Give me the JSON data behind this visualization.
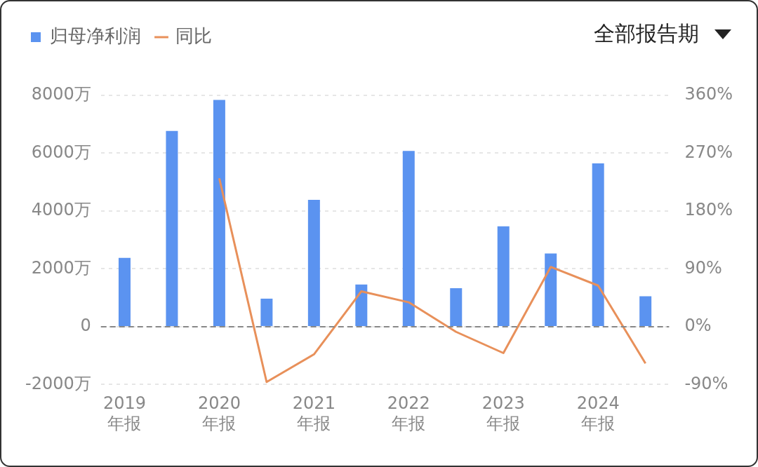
{
  "chart_data": {
    "type": "bar",
    "categories": [
      "2019 年报",
      null,
      "2020 年报",
      null,
      "2021 年报",
      null,
      "2022 年报",
      null,
      "2023 年报",
      null,
      "2024 年报",
      null
    ],
    "series": [
      {
        "name": "归母净利润",
        "color": "#5b93f0",
        "values": [
          2380,
          6770,
          7840,
          970,
          4390,
          1460,
          6080,
          1330,
          3470,
          2530,
          5650,
          1050
        ]
      },
      {
        "name": "同比",
        "type": "line",
        "axis": "y2",
        "color": "#e8905a",
        "values": [
          null,
          null,
          231,
          -86,
          -43,
          55,
          38,
          -8,
          -41,
          93,
          64,
          -57
        ]
      }
    ],
    "ylim": [
      -2000,
      8000
    ],
    "yticks": [
      {
        "value": -2000,
        "label": "-2000万"
      },
      0,
      {
        "value": 2000,
        "label": "2000万"
      },
      {
        "value": 4000,
        "label": "4000万"
      },
      {
        "value": 6000,
        "label": "6000万"
      },
      {
        "value": 8000,
        "label": "8000万"
      }
    ],
    "y2lim": [
      -90,
      360
    ],
    "y2ticks": [
      {
        "value": -90,
        "label": "-90%"
      },
      {
        "value": 0,
        "label": "0%"
      },
      {
        "value": 90,
        "label": "90%"
      },
      {
        "value": 180,
        "label": "180%"
      },
      {
        "value": 270,
        "label": "270%"
      },
      {
        "value": 360,
        "label": "360%"
      }
    ],
    "grid": "y",
    "ref_lines": [
      {
        "axis": "y",
        "value": 0,
        "color": "#888888",
        "line_style": "dashed"
      }
    ],
    "legend": "top left",
    "marker": "none",
    "annotations": [
      "全部报告期"
    ]
  }
}
